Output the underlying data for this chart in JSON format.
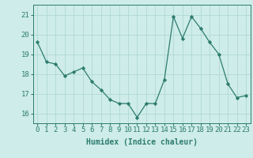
{
  "x": [
    0,
    1,
    2,
    3,
    4,
    5,
    6,
    7,
    8,
    9,
    10,
    11,
    12,
    13,
    14,
    15,
    16,
    17,
    18,
    19,
    20,
    21,
    22,
    23
  ],
  "y": [
    19.6,
    18.6,
    18.5,
    17.9,
    18.1,
    18.3,
    17.6,
    17.2,
    16.7,
    16.5,
    16.5,
    15.8,
    16.5,
    16.5,
    17.7,
    20.9,
    19.8,
    20.9,
    20.3,
    19.6,
    19.0,
    17.5,
    16.8,
    16.9
  ],
  "line_color": "#2d7c6e",
  "marker": "D",
  "marker_size": 2.2,
  "bg_color": "#ceecea",
  "grid_color": "#b0d8d4",
  "tick_color": "#2d7c6e",
  "xlabel": "Humidex (Indice chaleur)",
  "xlabel_fontsize": 7,
  "tick_fontsize": 6.5,
  "ylim": [
    15.5,
    21.5
  ],
  "xlim": [
    -0.5,
    23.5
  ],
  "yticks": [
    16,
    17,
    18,
    19,
    20,
    21
  ],
  "xticks": [
    0,
    1,
    2,
    3,
    4,
    5,
    6,
    7,
    8,
    9,
    10,
    11,
    12,
    13,
    14,
    15,
    16,
    17,
    18,
    19,
    20,
    21,
    22,
    23
  ]
}
